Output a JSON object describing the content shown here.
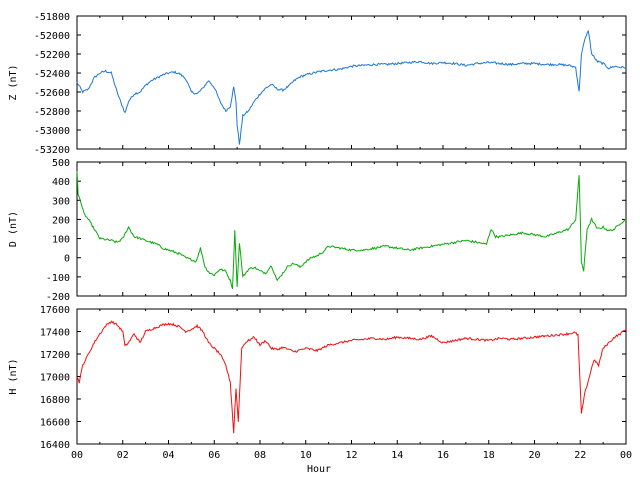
{
  "chart_data": [
    {
      "type": "line",
      "ylabel": "Z (nT)",
      "ylim": [
        -53200,
        -51800
      ],
      "yticks": [
        -51800,
        -52000,
        -52200,
        -52400,
        -52600,
        -52800,
        -53000,
        -53200
      ],
      "color": "#1f77d4",
      "x": [
        0.0,
        0.25,
        0.5,
        0.75,
        1.0,
        1.25,
        1.5,
        1.75,
        2.0,
        2.1,
        2.25,
        2.5,
        2.75,
        3.0,
        3.25,
        3.5,
        3.75,
        4.0,
        4.25,
        4.5,
        4.75,
        5.0,
        5.25,
        5.5,
        5.75,
        6.0,
        6.25,
        6.5,
        6.7,
        6.85,
        6.95,
        7.0,
        7.1,
        7.25,
        7.5,
        7.75,
        8.0,
        8.25,
        8.5,
        8.75,
        9.0,
        9.25,
        9.5,
        9.75,
        10.0,
        10.5,
        11.0,
        11.5,
        12.0,
        12.5,
        13.0,
        13.5,
        14.0,
        14.5,
        15.0,
        15.5,
        16.0,
        16.5,
        17.0,
        17.5,
        18.0,
        18.5,
        19.0,
        19.5,
        20.0,
        20.5,
        21.0,
        21.5,
        21.8,
        21.95,
        22.05,
        22.2,
        22.35,
        22.5,
        22.75,
        23.0,
        23.25,
        23.5,
        23.75,
        24.0
      ],
      "y": [
        -52500,
        -52600,
        -52570,
        -52450,
        -52400,
        -52380,
        -52400,
        -52600,
        -52760,
        -52820,
        -52700,
        -52620,
        -52600,
        -52530,
        -52480,
        -52450,
        -52420,
        -52400,
        -52390,
        -52410,
        -52460,
        -52600,
        -52620,
        -52560,
        -52480,
        -52550,
        -52700,
        -52800,
        -52750,
        -52550,
        -52700,
        -52950,
        -53150,
        -52850,
        -52800,
        -52700,
        -52620,
        -52560,
        -52520,
        -52570,
        -52580,
        -52540,
        -52480,
        -52440,
        -52420,
        -52390,
        -52370,
        -52360,
        -52330,
        -52320,
        -52310,
        -52310,
        -52300,
        -52290,
        -52280,
        -52300,
        -52290,
        -52300,
        -52320,
        -52300,
        -52290,
        -52300,
        -52310,
        -52300,
        -52300,
        -52310,
        -52310,
        -52320,
        -52340,
        -52600,
        -52200,
        -52050,
        -51950,
        -52200,
        -52280,
        -52300,
        -52350,
        -52330,
        -52340,
        -52340
      ]
    },
    {
      "type": "line",
      "ylabel": "D (nT)",
      "ylim": [
        -200,
        500
      ],
      "yticks": [
        500,
        400,
        300,
        200,
        100,
        0,
        -100,
        -200
      ],
      "color": "#0aaa0a",
      "x": [
        0.0,
        0.05,
        0.15,
        0.3,
        0.5,
        0.75,
        1.0,
        1.25,
        1.5,
        1.75,
        2.0,
        2.25,
        2.5,
        2.75,
        3.0,
        3.25,
        3.5,
        3.75,
        4.0,
        4.25,
        4.5,
        4.75,
        5.0,
        5.2,
        5.4,
        5.6,
        5.8,
        6.0,
        6.25,
        6.5,
        6.7,
        6.8,
        6.9,
        7.0,
        7.1,
        7.25,
        7.5,
        7.75,
        8.0,
        8.25,
        8.5,
        8.75,
        9.0,
        9.25,
        9.5,
        9.75,
        10.0,
        10.25,
        10.5,
        10.75,
        11.0,
        11.5,
        12.0,
        12.5,
        13.0,
        13.5,
        14.0,
        14.5,
        15.0,
        15.5,
        16.0,
        16.5,
        17.0,
        17.5,
        17.9,
        18.1,
        18.3,
        18.5,
        19.0,
        19.5,
        20.0,
        20.5,
        21.0,
        21.5,
        21.8,
        21.95,
        22.05,
        22.15,
        22.3,
        22.5,
        22.75,
        23.0,
        23.25,
        23.5,
        23.75,
        24.0
      ],
      "y": [
        450,
        330,
        300,
        230,
        200,
        150,
        100,
        95,
        90,
        80,
        100,
        160,
        110,
        100,
        90,
        80,
        70,
        50,
        40,
        30,
        20,
        0,
        -10,
        -20,
        50,
        -50,
        -80,
        -90,
        -60,
        -70,
        -120,
        -160,
        140,
        -150,
        80,
        -100,
        -60,
        -50,
        -70,
        -80,
        -40,
        -120,
        -80,
        -40,
        -30,
        -50,
        -20,
        0,
        10,
        30,
        60,
        50,
        40,
        40,
        50,
        60,
        50,
        40,
        50,
        60,
        70,
        80,
        90,
        80,
        70,
        150,
        110,
        110,
        120,
        130,
        120,
        110,
        130,
        150,
        200,
        430,
        -20,
        -70,
        150,
        200,
        150,
        160,
        140,
        150,
        180,
        200
      ]
    },
    {
      "type": "line",
      "ylabel": "H (nT)",
      "ylim": [
        16400,
        17600
      ],
      "yticks": [
        17600,
        17400,
        17200,
        17000,
        16800,
        16600,
        16400
      ],
      "color": "#ee1111",
      "x": [
        0.0,
        0.1,
        0.25,
        0.5,
        0.75,
        1.0,
        1.25,
        1.5,
        1.75,
        2.0,
        2.1,
        2.25,
        2.5,
        2.75,
        3.0,
        3.25,
        3.5,
        3.75,
        4.0,
        4.25,
        4.5,
        4.75,
        5.0,
        5.25,
        5.5,
        5.75,
        6.0,
        6.25,
        6.5,
        6.7,
        6.85,
        6.95,
        7.05,
        7.2,
        7.35,
        7.5,
        7.75,
        8.0,
        8.25,
        8.5,
        8.75,
        9.0,
        9.5,
        10.0,
        10.5,
        11.0,
        11.5,
        12.0,
        12.5,
        13.0,
        13.5,
        14.0,
        14.5,
        15.0,
        15.5,
        16.0,
        16.5,
        17.0,
        17.5,
        18.0,
        18.5,
        19.0,
        19.5,
        20.0,
        20.5,
        21.0,
        21.5,
        21.75,
        21.9,
        22.05,
        22.2,
        22.4,
        22.6,
        22.8,
        23.0,
        23.25,
        23.5,
        23.75,
        24.0
      ],
      "y": [
        17000,
        16950,
        17100,
        17200,
        17300,
        17380,
        17450,
        17490,
        17460,
        17400,
        17270,
        17300,
        17380,
        17300,
        17400,
        17420,
        17440,
        17460,
        17470,
        17460,
        17440,
        17400,
        17420,
        17450,
        17400,
        17300,
        17250,
        17200,
        17100,
        16950,
        16500,
        16900,
        16600,
        17250,
        17300,
        17320,
        17350,
        17280,
        17320,
        17250,
        17240,
        17260,
        17220,
        17250,
        17230,
        17280,
        17300,
        17320,
        17330,
        17340,
        17330,
        17350,
        17340,
        17330,
        17360,
        17300,
        17320,
        17340,
        17330,
        17320,
        17340,
        17330,
        17340,
        17350,
        17360,
        17370,
        17380,
        17390,
        17370,
        16670,
        16850,
        17000,
        17150,
        17100,
        17250,
        17300,
        17350,
        17380,
        17420
      ]
    }
  ],
  "x_axis": {
    "xlabel": "Hour",
    "xlim": [
      0,
      24
    ],
    "xtick_labels": [
      "00",
      "02",
      "04",
      "06",
      "08",
      "10",
      "12",
      "14",
      "16",
      "18",
      "20",
      "22",
      "00"
    ]
  }
}
